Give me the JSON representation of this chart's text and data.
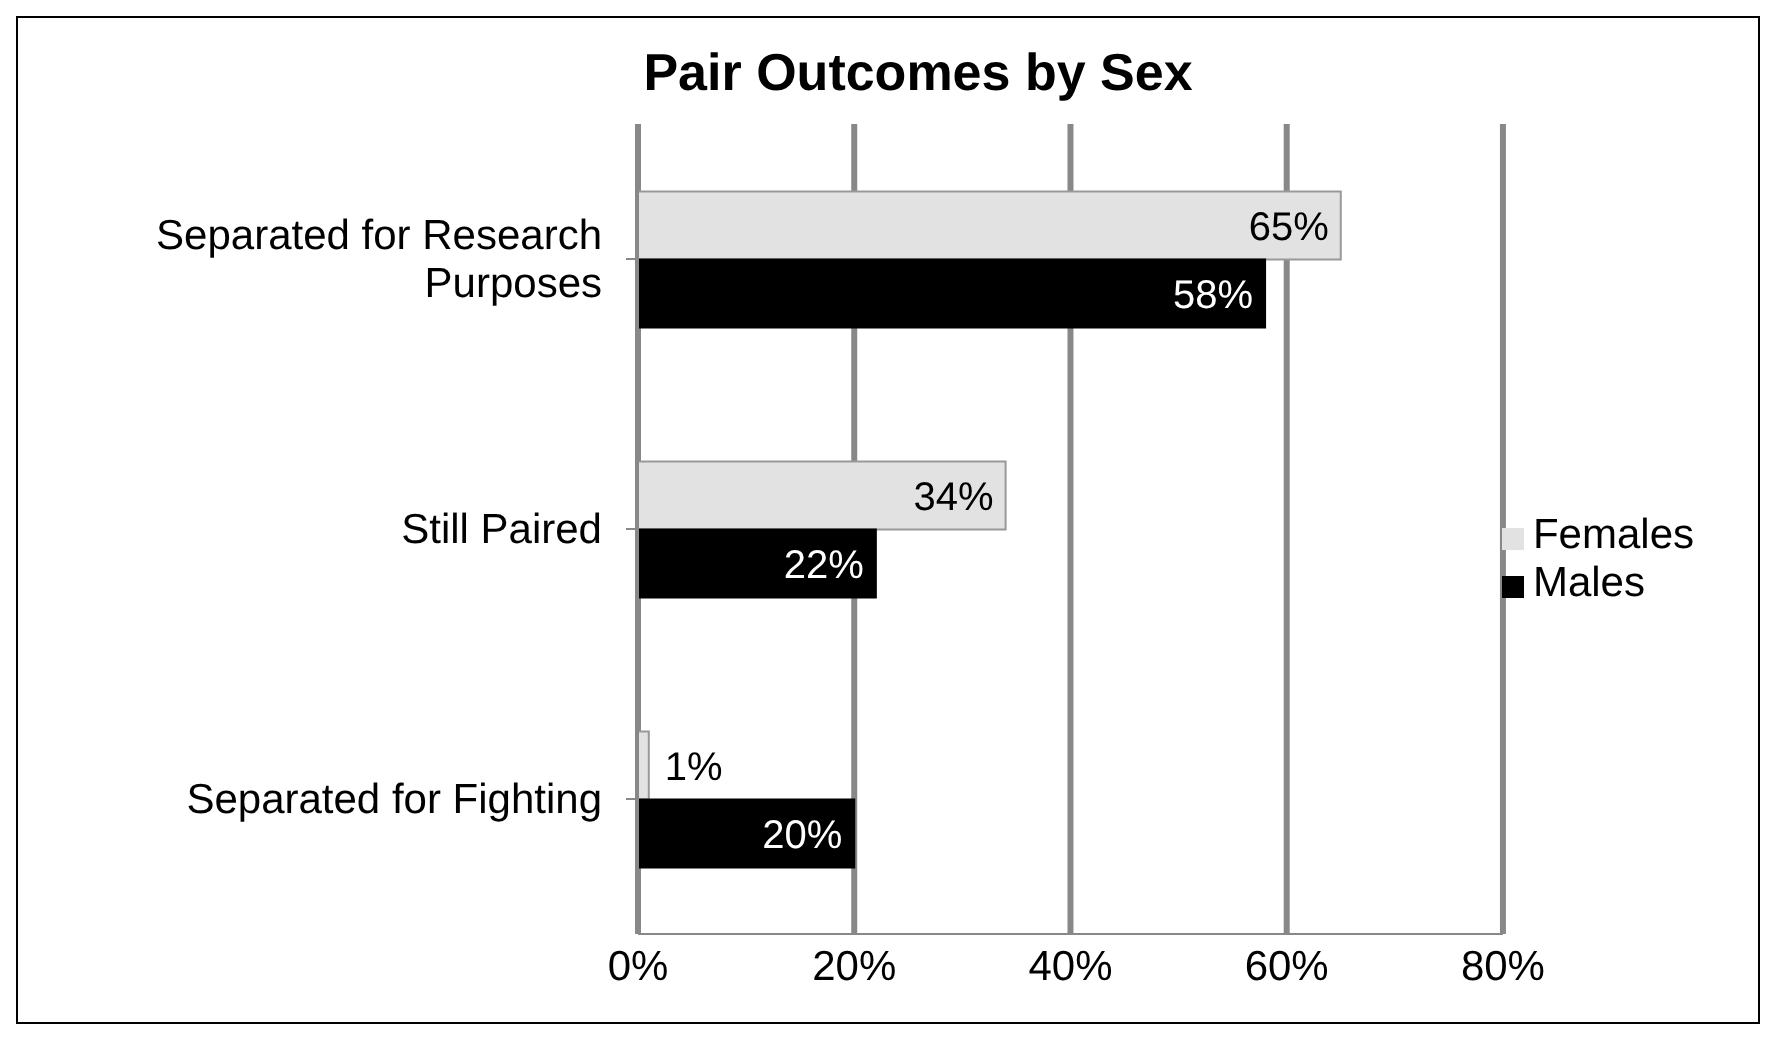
{
  "chart_data": {
    "type": "bar",
    "orientation": "horizontal",
    "title": "Pair Outcomes by Sex",
    "categories": [
      "Separated for Research Purposes",
      "Still Paired",
      "Separated for Fighting"
    ],
    "series": [
      {
        "name": "Females",
        "color": "#e2e2e2",
        "values": [
          65,
          34,
          1
        ],
        "value_labels": [
          "65%",
          "34%",
          "1%"
        ]
      },
      {
        "name": "Males",
        "color": "#000000",
        "values": [
          58,
          22,
          20
        ],
        "value_labels": [
          "58%",
          "22%",
          "20%"
        ]
      }
    ],
    "xlim": [
      0,
      80
    ],
    "xticks": [
      {
        "value": 0,
        "label": "0%"
      },
      {
        "value": 20,
        "label": "20%"
      },
      {
        "value": 40,
        "label": "40%"
      },
      {
        "value": 60,
        "label": "60%"
      },
      {
        "value": 80,
        "label": "80%"
      }
    ],
    "grid": "x",
    "legend": "right"
  }
}
